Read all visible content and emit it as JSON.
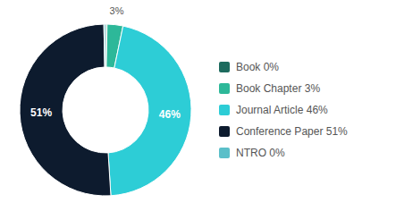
{
  "chart_data": {
    "type": "pie",
    "categories": [
      "Book 0%",
      "Book Chapter 3%",
      "Journal Article 46%",
      "Conference Paper 51%",
      "NTRO 0%"
    ],
    "values": [
      0.3,
      3,
      46,
      51,
      0.3
    ],
    "value_labels": [
      null,
      "3%",
      "46%",
      "51%",
      null
    ],
    "colors": [
      "#1d6b5e",
      "#2db899",
      "#2dcdd6",
      "#0d1b2e",
      "#5bbfc9"
    ],
    "data_labels": true,
    "legend": "right"
  }
}
